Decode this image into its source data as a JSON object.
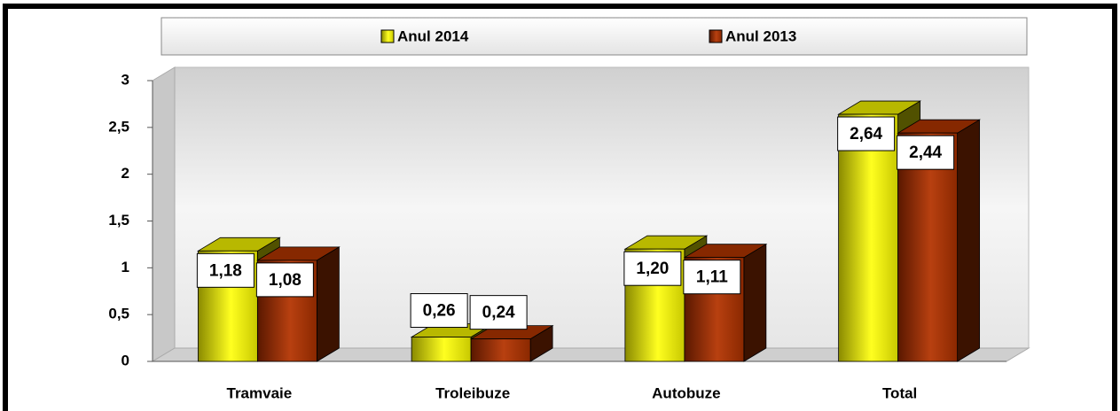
{
  "chart_data": {
    "type": "bar3d",
    "categories": [
      "Tramvaie",
      "Troleibuze",
      "Autobuze",
      "Total"
    ],
    "series": [
      {
        "name": "Anul 2014",
        "color": "#e6e600",
        "values": [
          1.18,
          0.26,
          1.2,
          2.64
        ],
        "value_labels": [
          "1,18",
          "0,26",
          "1,20",
          "2,64"
        ]
      },
      {
        "name": "Anul 2013",
        "color": "#a83200",
        "values": [
          1.08,
          0.24,
          1.11,
          2.44
        ],
        "value_labels": [
          "1,08",
          "0,24",
          "1,11",
          "2,44"
        ]
      }
    ],
    "ylim": [
      0,
      3
    ],
    "yticks": [
      0,
      {
        "value": 0.5,
        "label": "0,5"
      },
      1,
      {
        "value": 1.5,
        "label": "1,5"
      },
      2,
      {
        "value": 2.5,
        "label": "2,5"
      },
      3
    ],
    "legend": "top"
  }
}
